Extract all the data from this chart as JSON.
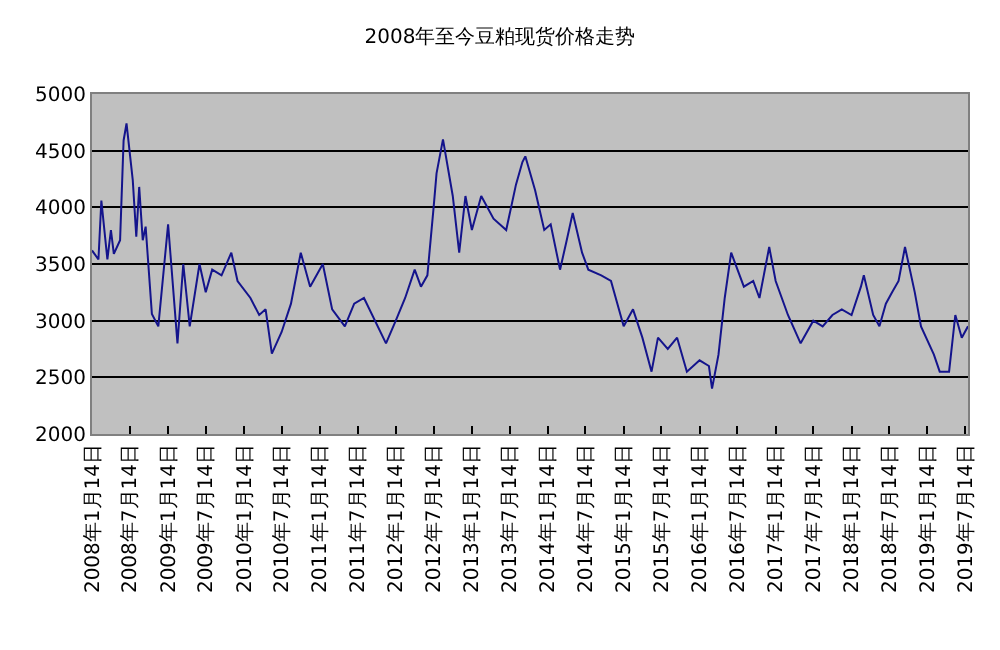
{
  "chart_data": {
    "type": "line",
    "title": "2008年至今豆粕现货价格走势",
    "x": [
      "2008-01-14",
      "2008-02-14",
      "2008-02-28",
      "2008-03-28",
      "2008-04-14",
      "2008-04-28",
      "2008-05-28",
      "2008-06-14",
      "2008-06-28",
      "2008-07-28",
      "2008-08-14",
      "2008-08-28",
      "2008-09-14",
      "2008-09-28",
      "2008-10-28",
      "2008-11-28",
      "2009-01-14",
      "2009-02-28",
      "2009-03-28",
      "2009-04-28",
      "2009-06-14",
      "2009-07-14",
      "2009-08-14",
      "2009-09-28",
      "2009-11-14",
      "2009-12-14",
      "2010-02-14",
      "2010-03-28",
      "2010-04-28",
      "2010-05-28",
      "2010-07-14",
      "2010-08-28",
      "2010-10-14",
      "2010-11-28",
      "2011-01-28",
      "2011-03-14",
      "2011-05-14",
      "2011-06-28",
      "2011-08-14",
      "2011-11-28",
      "2012-01-14",
      "2012-02-28",
      "2012-04-14",
      "2012-05-14",
      "2012-06-14",
      "2012-07-14",
      "2012-07-28",
      "2012-08-28",
      "2012-10-14",
      "2012-11-14",
      "2012-12-14",
      "2013-01-14",
      "2013-02-28",
      "2013-04-28",
      "2013-06-28",
      "2013-08-14",
      "2013-09-14",
      "2013-09-28",
      "2013-11-14",
      "2013-12-28",
      "2014-01-28",
      "2014-03-14",
      "2014-04-14",
      "2014-05-14",
      "2014-06-28",
      "2014-07-28",
      "2014-09-28",
      "2014-11-14",
      "2015-01-14",
      "2015-02-28",
      "2015-04-14",
      "2015-05-28",
      "2015-06-28",
      "2015-08-14",
      "2015-09-28",
      "2015-11-14",
      "2016-01-14",
      "2016-02-28",
      "2016-03-14",
      "2016-04-14",
      "2016-05-14",
      "2016-06-14",
      "2016-08-14",
      "2016-09-28",
      "2016-10-28",
      "2016-12-14",
      "2017-01-14",
      "2017-03-14",
      "2017-05-14",
      "2017-07-14",
      "2017-08-28",
      "2017-10-14",
      "2017-11-28",
      "2018-01-14",
      "2018-02-28",
      "2018-03-14",
      "2018-04-28",
      "2018-05-28",
      "2018-06-28",
      "2018-07-28",
      "2018-08-28",
      "2018-09-28",
      "2018-11-14",
      "2018-12-14",
      "2019-02-14",
      "2019-03-14",
      "2019-04-28",
      "2019-05-28",
      "2019-06-28",
      "2019-07-28"
    ],
    "series": [
      {
        "color": "#14148c",
        "values": [
          3620,
          3540,
          4060,
          3540,
          3800,
          3590,
          3710,
          4590,
          4740,
          4240,
          3740,
          4180,
          3710,
          3830,
          3060,
          2950,
          3850,
          2800,
          3500,
          2950,
          3500,
          3250,
          3450,
          3400,
          3600,
          3350,
          3200,
          3050,
          3100,
          2710,
          2900,
          3150,
          3600,
          3300,
          3500,
          3100,
          2950,
          3150,
          3200,
          2800,
          3000,
          3200,
          3450,
          3300,
          3400,
          4000,
          4300,
          4600,
          4100,
          3600,
          4100,
          3800,
          4100,
          3900,
          3800,
          4200,
          4400,
          4450,
          4150,
          3800,
          3850,
          3450,
          3700,
          3950,
          3600,
          3450,
          3400,
          3350,
          2950,
          3100,
          2850,
          2550,
          2850,
          2750,
          2850,
          2550,
          2650,
          2600,
          2400,
          2700,
          3200,
          3600,
          3300,
          3350,
          3200,
          3650,
          3350,
          3050,
          2800,
          3000,
          2950,
          3050,
          3100,
          3050,
          3300,
          3400,
          3050,
          2950,
          3150,
          3250,
          3350,
          3650,
          3250,
          2950,
          2700,
          2550,
          2550,
          3050,
          2850,
          2950
        ]
      }
    ],
    "xlim": [
      "2008-01-14",
      "2019-07-28"
    ],
    "xticks": [
      {
        "value": "2008-01-14",
        "label": "2008年1月14日"
      },
      {
        "value": "2008-07-14",
        "label": "2008年7月14日"
      },
      {
        "value": "2009-01-14",
        "label": "2009年1月14日"
      },
      {
        "value": "2009-07-14",
        "label": "2009年7月14日"
      },
      {
        "value": "2010-01-14",
        "label": "2010年1月14日"
      },
      {
        "value": "2010-07-14",
        "label": "2010年7月14日"
      },
      {
        "value": "2011-01-14",
        "label": "2011年1月14日"
      },
      {
        "value": "2011-07-14",
        "label": "2011年7月14日"
      },
      {
        "value": "2012-01-14",
        "label": "2012年1月14日"
      },
      {
        "value": "2012-07-14",
        "label": "2012年7月14日"
      },
      {
        "value": "2013-01-14",
        "label": "2013年1月14日"
      },
      {
        "value": "2013-07-14",
        "label": "2013年7月14日"
      },
      {
        "value": "2014-01-14",
        "label": "2014年1月14日"
      },
      {
        "value": "2014-07-14",
        "label": "2014年7月14日"
      },
      {
        "value": "2015-01-14",
        "label": "2015年1月14日"
      },
      {
        "value": "2015-07-14",
        "label": "2015年7月14日"
      },
      {
        "value": "2016-01-14",
        "label": "2016年1月14日"
      },
      {
        "value": "2016-07-14",
        "label": "2016年7月14日"
      },
      {
        "value": "2017-01-14",
        "label": "2017年1月14日"
      },
      {
        "value": "2017-07-14",
        "label": "2017年7月14日"
      },
      {
        "value": "2018-01-14",
        "label": "2018年1月14日"
      },
      {
        "value": "2018-07-14",
        "label": "2018年7月14日"
      },
      {
        "value": "2019-01-14",
        "label": "2019年1月14日"
      },
      {
        "value": "2019-07-14",
        "label": "2019年7月14日"
      }
    ],
    "ylim": [
      2000,
      5000
    ],
    "yticks": [
      2000,
      2500,
      3000,
      3500,
      4000,
      4500,
      5000
    ],
    "grid": "y",
    "marker": "none",
    "line_style": "solid"
  }
}
